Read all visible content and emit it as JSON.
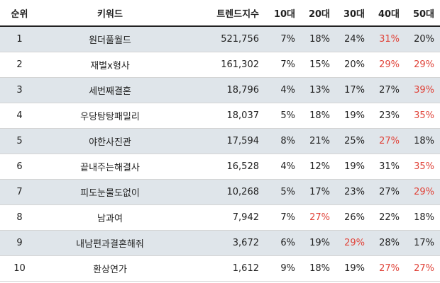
{
  "headers": {
    "rank": "순위",
    "keyword": "키워드",
    "trend_score": "트렌드지수",
    "age10": "10대",
    "age20": "20대",
    "age30": "30대",
    "age40": "40대",
    "age50": "50대"
  },
  "highlight_color": "#e0443a",
  "rows": [
    {
      "rank": "1",
      "keyword": "원더풀월드",
      "trend_score": "521,756",
      "age10": "7%",
      "age20": "18%",
      "age30": "24%",
      "age40": "31%",
      "age50": "20%",
      "highlight": [
        "age40"
      ]
    },
    {
      "rank": "2",
      "keyword": "재벌x형사",
      "trend_score": "161,302",
      "age10": "7%",
      "age20": "15%",
      "age30": "20%",
      "age40": "29%",
      "age50": "29%",
      "highlight": [
        "age40",
        "age50"
      ]
    },
    {
      "rank": "3",
      "keyword": "세번째결혼",
      "trend_score": "18,796",
      "age10": "4%",
      "age20": "13%",
      "age30": "17%",
      "age40": "27%",
      "age50": "39%",
      "highlight": [
        "age50"
      ]
    },
    {
      "rank": "4",
      "keyword": "우당탕탕패밀리",
      "trend_score": "18,037",
      "age10": "5%",
      "age20": "18%",
      "age30": "19%",
      "age40": "23%",
      "age50": "35%",
      "highlight": [
        "age50"
      ]
    },
    {
      "rank": "5",
      "keyword": "야한사진관",
      "trend_score": "17,594",
      "age10": "8%",
      "age20": "21%",
      "age30": "25%",
      "age40": "27%",
      "age50": "18%",
      "highlight": [
        "age40"
      ]
    },
    {
      "rank": "6",
      "keyword": "끝내주는해결사",
      "trend_score": "16,528",
      "age10": "4%",
      "age20": "12%",
      "age30": "19%",
      "age40": "31%",
      "age50": "35%",
      "highlight": [
        "age50"
      ]
    },
    {
      "rank": "7",
      "keyword": "피도눈물도없이",
      "trend_score": "10,268",
      "age10": "5%",
      "age20": "17%",
      "age30": "23%",
      "age40": "27%",
      "age50": "29%",
      "highlight": [
        "age50"
      ]
    },
    {
      "rank": "8",
      "keyword": "남과여",
      "trend_score": "7,942",
      "age10": "7%",
      "age20": "27%",
      "age30": "26%",
      "age40": "22%",
      "age50": "18%",
      "highlight": [
        "age20"
      ]
    },
    {
      "rank": "9",
      "keyword": "내남편과결혼해줘",
      "trend_score": "3,672",
      "age10": "6%",
      "age20": "19%",
      "age30": "29%",
      "age40": "28%",
      "age50": "17%",
      "highlight": [
        "age30"
      ]
    },
    {
      "rank": "10",
      "keyword": "환상연가",
      "trend_score": "1,612",
      "age10": "9%",
      "age20": "18%",
      "age30": "19%",
      "age40": "27%",
      "age50": "27%",
      "highlight": [
        "age40",
        "age50"
      ]
    }
  ]
}
